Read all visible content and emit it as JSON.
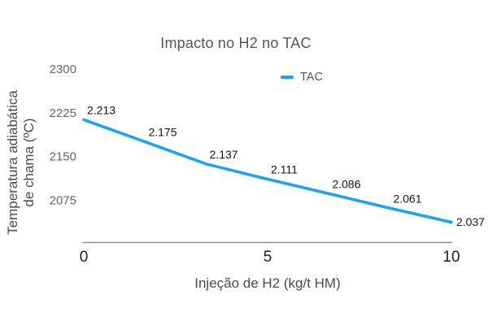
{
  "chart_data": {
    "type": "line",
    "title": "Impacto no H2 no TAC",
    "xlabel": "Injeção de H2 (kg/t HM)",
    "ylabel": "Temperatura adiabática de chama (ºC)",
    "ylabel_lines": [
      "Temperatura adiabática",
      "de chama (ºC)"
    ],
    "x": [
      0,
      1.67,
      3.33,
      5,
      6.67,
      8.33,
      10
    ],
    "series": [
      {
        "name": "TAC",
        "values": [
          2213,
          2175,
          2137,
          2111,
          2086,
          2061,
          2037
        ],
        "point_labels": [
          "2.213",
          "2.175",
          "2.137",
          "2.111",
          "2.086",
          "2.061",
          "2.037"
        ]
      }
    ],
    "x_ticks": [
      {
        "value": 0,
        "label": "0"
      },
      {
        "value": 5,
        "label": "5"
      },
      {
        "value": 10,
        "label": "10"
      }
    ],
    "y_ticks": [
      {
        "value": 2300,
        "label": "2300"
      },
      {
        "value": 2225,
        "label": "2225"
      },
      {
        "value": 2150,
        "label": "2150"
      },
      {
        "value": 2075,
        "label": "2075"
      }
    ],
    "xlim": [
      0,
      10
    ],
    "ylim": [
      2000,
      2300
    ],
    "grid": false,
    "legend_position": "top",
    "colors": {
      "line": "#1CA3F2",
      "title_text": "#565656",
      "legend_text": "#555555",
      "axis_title_text": "#4a4a4a",
      "y_tick_text": "#666666",
      "x_tick_text": "#1a1a1a",
      "data_label_text": "#141414",
      "axis_line": "#8e8e8e",
      "background": "#ffffff"
    }
  }
}
